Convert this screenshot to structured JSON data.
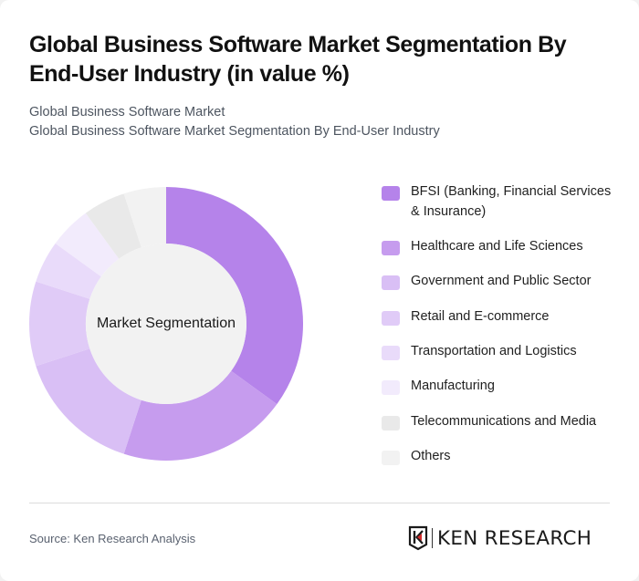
{
  "header": {
    "title": "Global Business Software Market Segmentation By End-User Industry (in value %)",
    "subtitle_line1": "Global Business Software Market",
    "subtitle_line2": "Global Business Software Market Segmentation By End-User Industry"
  },
  "chart": {
    "center_label": "Market Segmentation"
  },
  "legend": {
    "items": [
      {
        "label": "BFSI (Banking, Financial Services & Insurance)",
        "color": "#b583ea"
      },
      {
        "label": "Healthcare and Life Sciences",
        "color": "#c69cee"
      },
      {
        "label": "Government and Public Sector",
        "color": "#d9bff5"
      },
      {
        "label": "Retail and E-commerce",
        "color": "#e0cbf7"
      },
      {
        "label": "Transportation and Logistics",
        "color": "#e9dbfa"
      },
      {
        "label": "Manufacturing",
        "color": "#f2ebfc"
      },
      {
        "label": "Telecommunications and Media",
        "color": "#e9e9e9"
      },
      {
        "label": "Others",
        "color": "#f2f2f2"
      }
    ]
  },
  "footer": {
    "source": "Source: Ken Research Analysis",
    "logo_text": "KEN RESEARCH"
  },
  "chart_data": {
    "type": "pie",
    "subtype": "donut",
    "title": "Global Business Software Market Segmentation By End-User Industry (in value %)",
    "subtitle": "Global Business Software Market",
    "center_label": "Market Segmentation",
    "categories": [
      "BFSI (Banking, Financial Services & Insurance)",
      "Healthcare and Life Sciences",
      "Government and Public Sector",
      "Retail and E-commerce",
      "Transportation and Logistics",
      "Manufacturing",
      "Telecommunications and Media",
      "Others"
    ],
    "values": [
      35,
      20,
      15,
      10,
      5,
      5,
      5,
      5
    ],
    "colors": [
      "#b583ea",
      "#c69cee",
      "#d9bff5",
      "#e0cbf7",
      "#e9dbfa",
      "#f2ebfc",
      "#e9e9e9",
      "#f2f2f2"
    ],
    "unit": "%",
    "legend_position": "right",
    "source": "Source: Ken Research Analysis"
  }
}
